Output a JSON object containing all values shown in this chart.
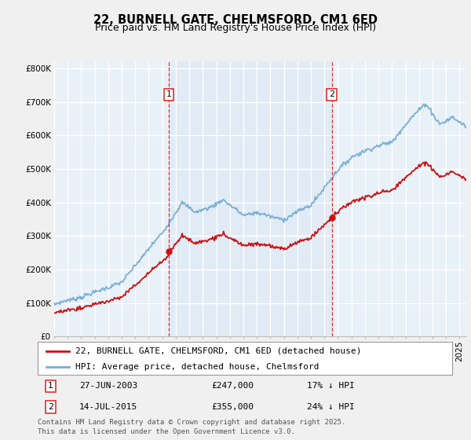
{
  "title": "22, BURNELL GATE, CHELMSFORD, CM1 6ED",
  "subtitle": "Price paid vs. HM Land Registry's House Price Index (HPI)",
  "ytick_labels": [
    "£0",
    "£100K",
    "£200K",
    "£300K",
    "£400K",
    "£500K",
    "£600K",
    "£700K",
    "£800K"
  ],
  "yticks": [
    0,
    100000,
    200000,
    300000,
    400000,
    500000,
    600000,
    700000,
    800000
  ],
  "ylim": [
    0,
    820000
  ],
  "xlim_start": 1995.0,
  "xlim_end": 2025.5,
  "hpi_color": "#7bafd4",
  "hpi_fill_color": "#ddeaf6",
  "price_color": "#cc1111",
  "vline_color": "#dd3333",
  "bg_color": "#e8f0f8",
  "grid_color": "#ffffff",
  "fig_bg": "#f0f0f0",
  "sale1_year": 2003.49,
  "sale2_year": 2015.54,
  "sale1_price": 247000,
  "sale2_price": 355000,
  "legend_line1": "22, BURNELL GATE, CHELMSFORD, CM1 6ED (detached house)",
  "legend_line2": "HPI: Average price, detached house, Chelmsford",
  "ann1_date": "27-JUN-2003",
  "ann1_price": "£247,000",
  "ann1_pct": "17% ↓ HPI",
  "ann2_date": "14-JUL-2015",
  "ann2_price": "£355,000",
  "ann2_pct": "24% ↓ HPI",
  "footer": "Contains HM Land Registry data © Crown copyright and database right 2025.\nThis data is licensed under the Open Government Licence v3.0.",
  "title_fontsize": 10.5,
  "subtitle_fontsize": 9,
  "tick_fontsize": 7.5,
  "legend_fontsize": 8,
  "ann_fontsize": 8,
  "footer_fontsize": 6.5
}
